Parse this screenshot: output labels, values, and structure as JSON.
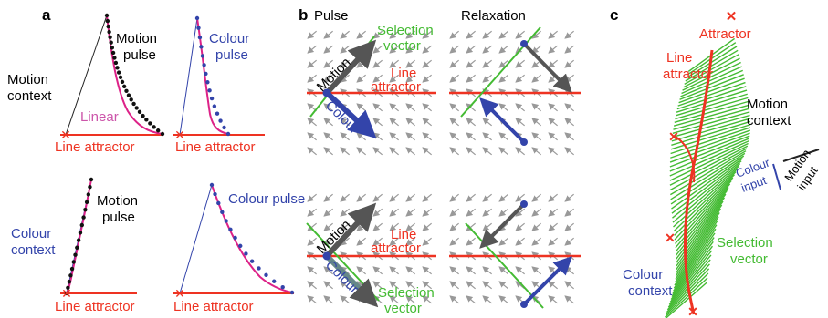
{
  "panels": {
    "a": {
      "letter": "a",
      "top_left": {
        "context": [
          "Motion",
          "context"
        ],
        "pulse": [
          "Motion",
          "pulse"
        ],
        "fit": "Linear",
        "attractor": "Line attractor"
      },
      "top_right": {
        "pulse": [
          "Colour",
          "pulse"
        ],
        "attractor": "Line attractor"
      },
      "bottom_left": {
        "context": [
          "Colour",
          "context"
        ],
        "pulse": [
          "Motion",
          "pulse"
        ],
        "attractor": "Line attractor"
      },
      "bottom_right": {
        "pulse": [
          "Colour pulse"
        ],
        "attractor": "Line attractor"
      }
    },
    "b": {
      "letter": "b",
      "col_pulse": "Pulse",
      "col_relax": "Relaxation",
      "top": {
        "selection": [
          "Selection",
          "vector"
        ],
        "motion": "Motion",
        "line_attr": [
          "Line",
          "attractor"
        ],
        "colour": "Colour"
      },
      "bottom": {
        "motion": "Motion",
        "line_attr": [
          "Line",
          "attractor"
        ],
        "colour": "Colour",
        "selection": [
          "Selection",
          "vector"
        ]
      }
    },
    "c": {
      "letter": "c",
      "attractor": "Attractor",
      "line_attr": [
        "Line",
        "attractor"
      ],
      "motion_context": [
        "Motion",
        "context"
      ],
      "colour_input": [
        "Colour",
        "input"
      ],
      "motion_input": [
        "Motion",
        "input"
      ],
      "selection": [
        "Selection",
        "vector"
      ],
      "colour_context": [
        "Colour",
        "context"
      ]
    }
  },
  "colors": {
    "red": "#ee3322",
    "green": "#44bb33",
    "blue": "#3344aa",
    "magenta": "#dd2288",
    "gray": "#555555",
    "arrow": "#999999"
  }
}
